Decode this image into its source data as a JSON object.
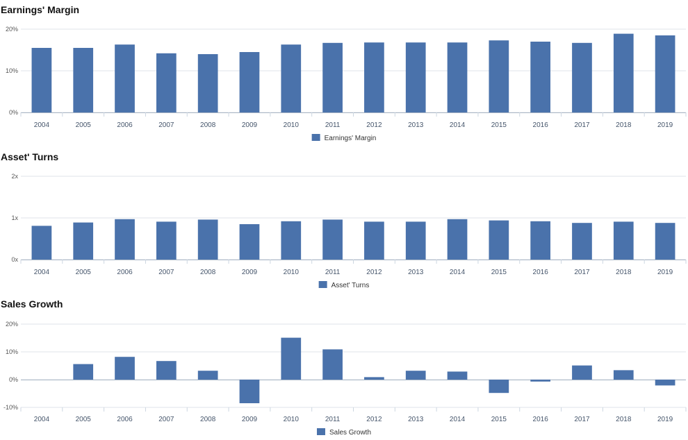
{
  "chart_data": [
    {
      "type": "bar",
      "title": "Earnings' Margin",
      "categories": [
        "2004",
        "2005",
        "2006",
        "2007",
        "2008",
        "2009",
        "2010",
        "2011",
        "2012",
        "2013",
        "2014",
        "2015",
        "2016",
        "2017",
        "2018",
        "2019"
      ],
      "series": [
        {
          "name": "Earnings' Margin",
          "values": [
            15.5,
            15.5,
            16.3,
            14.2,
            14.0,
            14.5,
            16.3,
            16.7,
            16.8,
            16.8,
            16.8,
            17.3,
            17.0,
            16.7,
            18.9,
            18.5
          ]
        }
      ],
      "yticks": [
        "0%",
        "10%",
        "20%"
      ],
      "ylim": [
        0,
        20
      ],
      "unit": "%",
      "color": "#4a72ab",
      "legend": "bottom-center",
      "grid": true
    },
    {
      "type": "bar",
      "title": "Asset' Turns",
      "categories": [
        "2004",
        "2005",
        "2006",
        "2007",
        "2008",
        "2009",
        "2010",
        "2011",
        "2012",
        "2013",
        "2014",
        "2015",
        "2016",
        "2017",
        "2018",
        "2019"
      ],
      "series": [
        {
          "name": "Asset' Turns",
          "values": [
            0.81,
            0.89,
            0.97,
            0.91,
            0.96,
            0.85,
            0.92,
            0.96,
            0.91,
            0.91,
            0.97,
            0.94,
            0.92,
            0.88,
            0.91,
            0.88
          ]
        }
      ],
      "yticks": [
        "0x",
        "1x",
        "2x"
      ],
      "ylim": [
        0,
        2
      ],
      "unit": "x",
      "color": "#4a72ab",
      "legend": "bottom-center",
      "grid": true
    },
    {
      "type": "bar",
      "title": "Sales Growth",
      "categories": [
        "2004",
        "2005",
        "2006",
        "2007",
        "2008",
        "2009",
        "2010",
        "2011",
        "2012",
        "2013",
        "2014",
        "2015",
        "2016",
        "2017",
        "2018",
        "2019"
      ],
      "series": [
        {
          "name": "Sales Growth",
          "values": [
            null,
            5.6,
            8.2,
            6.7,
            3.2,
            -8.5,
            15.1,
            10.9,
            0.9,
            3.2,
            2.9,
            -4.8,
            -0.7,
            5.1,
            3.4,
            -2.1
          ]
        }
      ],
      "yticks": [
        "-10%",
        "0%",
        "10%",
        "20%"
      ],
      "ylim": [
        -10,
        20
      ],
      "unit": "%",
      "color": "#4a72ab",
      "legend": "bottom-center",
      "grid": true
    }
  ]
}
